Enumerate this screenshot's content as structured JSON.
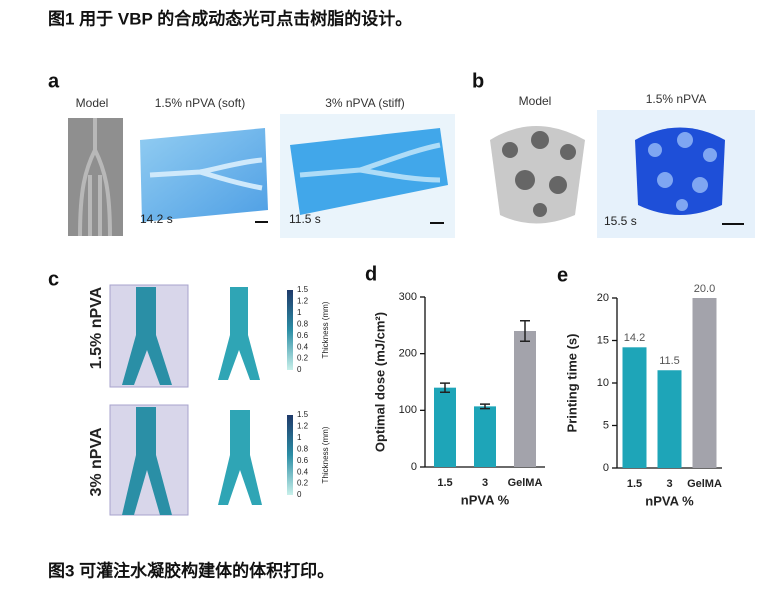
{
  "caption_top": "图1 用于 VBP 的合成动态光可点击树脂的设计。",
  "caption_bottom": "图3 可灌注水凝胶构建体的体积打印。",
  "panel_a": {
    "letter": "a",
    "model_label": "Model",
    "soft_label": "1.5% nPVA (soft)",
    "stiff_label": "3% nPVA (stiff)",
    "soft_time": "14.2 s",
    "stiff_time": "11.5 s"
  },
  "panel_b": {
    "letter": "b",
    "model_label": "Model",
    "print_label": "1.5% nPVA",
    "print_time": "15.5 s"
  },
  "panel_c": {
    "letter": "c",
    "rows": [
      "1.5% nPVA",
      "3% nPVA"
    ],
    "colorbar_label": "Thickness (mm)",
    "colorbar_ticks": [
      1.5,
      1.2,
      1,
      0.8,
      0.6,
      0.4,
      0.2,
      0
    ]
  },
  "chart_data": [
    {
      "type": "bar",
      "panel_label": "d",
      "ylabel": "Optimal dose (mJ/cm²)",
      "xlabel": "nPVA %",
      "categories": [
        "1.5",
        "3",
        "GelMA"
      ],
      "values": [
        140,
        107,
        240
      ],
      "errors": [
        8,
        4,
        18
      ],
      "colors": [
        "#1ea5b8",
        "#1ea5b8",
        "#a3a3ab"
      ],
      "ylim": [
        0,
        300
      ],
      "yticks": [
        0,
        100,
        200,
        300
      ]
    },
    {
      "type": "bar",
      "panel_label": "e",
      "ylabel": "Printing time (s)",
      "xlabel": "nPVA %",
      "categories": [
        "1.5",
        "3",
        "GelMA"
      ],
      "values": [
        14.2,
        11.5,
        20.0
      ],
      "value_labels": [
        "14.2",
        "11.5",
        "20.0"
      ],
      "colors": [
        "#1ea5b8",
        "#1ea5b8",
        "#a3a3ab"
      ],
      "ylim": [
        0,
        20
      ],
      "yticks": [
        0,
        5,
        10,
        15,
        20
      ]
    }
  ]
}
